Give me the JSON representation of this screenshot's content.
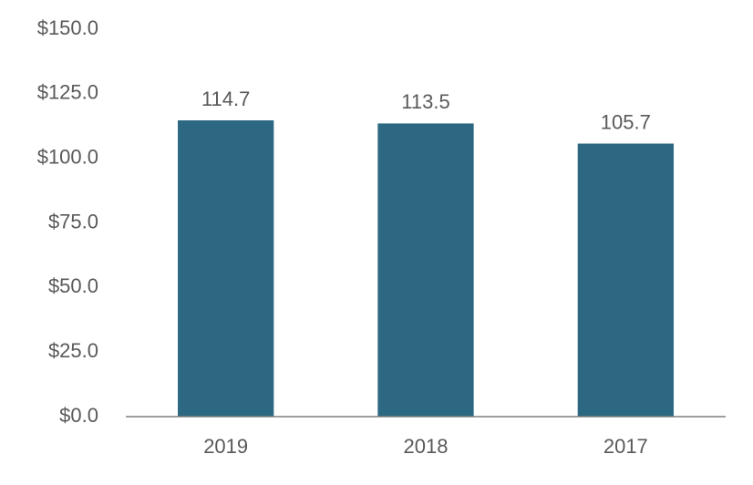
{
  "chart_data": {
    "type": "bar",
    "categories": [
      "2019",
      "2018",
      "2017"
    ],
    "values": [
      114.7,
      113.5,
      105.7
    ],
    "color": "#2c6882",
    "ylim": [
      0,
      150
    ],
    "yticks": [
      {
        "value": 0,
        "label": "$0.0"
      },
      {
        "value": 25,
        "label": "$25.0"
      },
      {
        "value": 50,
        "label": "$50.0"
      },
      {
        "value": 75,
        "label": "$75.0"
      },
      {
        "value": 100,
        "label": "$100.0"
      },
      {
        "value": 125,
        "label": "$125.0"
      },
      {
        "value": 150,
        "label": "$150.0"
      }
    ],
    "grid": false
  }
}
